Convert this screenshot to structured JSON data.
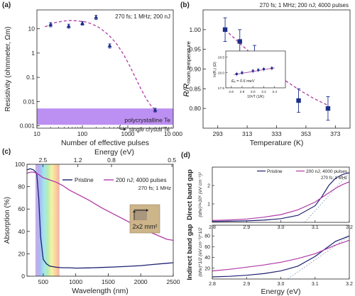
{
  "chart_data": [
    {
      "panel": "(a)",
      "type": "scatter",
      "xscale": "log",
      "yscale": "log",
      "xlim": [
        10,
        10000
      ],
      "ylim": [
        0.0008,
        60
      ],
      "xlabel": "Number of effective pulses",
      "ylabel": "Resistivity (ohmmeter, Ωm)",
      "xticks": [
        10,
        100,
        1000,
        10000
      ],
      "xtick_labels": [
        "10",
        "100",
        "1000",
        "10 000"
      ],
      "yticks": [
        0.001,
        0.01,
        0.1,
        1,
        10
      ],
      "ytick_labels": [
        "0.001",
        "0.01",
        "0.1",
        "1",
        "10"
      ],
      "annotation": "270 fs; 1 MHz; 200 nJ",
      "band": {
        "range": [
          0.0011,
          0.0052
        ],
        "label": "polycrystalline Te",
        "color": "#b07cf0"
      },
      "line_label": {
        "value": 0.00072,
        "label": "single crystal Te"
      },
      "series": [
        {
          "x": [
            20,
            50,
            100,
            200,
            400,
            4000
          ],
          "y": [
            15,
            13,
            17,
            30,
            2,
            0.0045
          ],
          "err": [
            3,
            2.5,
            3,
            6,
            0.4,
            0.0008
          ],
          "color": "#1c2f8a"
        }
      ],
      "fit": {
        "x": [
          15,
          25,
          40,
          60,
          80,
          120,
          160,
          220,
          300,
          400,
          550,
          800,
          1100,
          1500,
          2000,
          2600,
          3200,
          4000
        ],
        "y": [
          12,
          18,
          21,
          22,
          21,
          19,
          16,
          12,
          8,
          5,
          2.6,
          0.9,
          0.3,
          0.09,
          0.03,
          0.012,
          0.007,
          0.0045
        ],
        "color": "#b03aa8"
      }
    },
    {
      "panel": "(b)",
      "type": "scatter",
      "xlim": [
        283,
        383
      ],
      "ylim": [
        0.75,
        1.05
      ],
      "xlabel": "Temperature (K)",
      "ylabel": "R/R",
      "ylabel_sub": "room temperature",
      "xticks": [
        293,
        313,
        333,
        353,
        373
      ],
      "yticks": [
        0.8,
        0.85,
        0.9,
        0.95,
        1.0
      ],
      "ytick_labels": [
        "0.80",
        "0.85",
        "0.90",
        "0.95",
        "1.00"
      ],
      "annotation": "270 fs; 1 MHz; 200 nJ; 4000 pulses",
      "series": [
        {
          "x": [
            298,
            308,
            318,
            328,
            348,
            368
          ],
          "y": [
            1.0,
            0.97,
            0.93,
            0.9,
            0.82,
            0.8
          ],
          "err": [
            0.03,
            0.03,
            0.03,
            0.03,
            0.03,
            0.03
          ],
          "color": "#1c2f8a"
        }
      ],
      "fit": {
        "x": [
          298,
          308,
          318,
          328,
          338,
          348,
          358,
          368
        ],
        "y": [
          1.0,
          0.965,
          0.932,
          0.9,
          0.873,
          0.848,
          0.826,
          0.808
        ],
        "color": "#b03aa8"
      },
      "inset": {
        "xlim": [
          2.5,
          3.6
        ],
        "ylim": [
          17.5,
          18.7
        ],
        "xlabel": "10³/T (1/K)",
        "ylabel": "ln(R₀) (Ω)",
        "xticks": [
          2.6,
          2.8,
          3.0,
          3.2,
          3.4
        ],
        "xtick_labels": [
          "2.6",
          "2.8",
          "3.0",
          "3.2",
          "3.4"
        ],
        "yticks": [
          17.5,
          18.0,
          18.5
        ],
        "ytick_labels": [
          "17.5",
          "18.0",
          "18.5"
        ],
        "annotation": "Eₐ = 0.6 meV",
        "x": [
          2.7,
          2.8,
          3.0,
          3.1,
          3.2,
          3.35
        ],
        "y": [
          17.95,
          17.99,
          18.05,
          18.08,
          18.11,
          18.14
        ],
        "fit_x": [
          2.65,
          3.4
        ],
        "fit_y": [
          17.93,
          18.15
        ]
      }
    },
    {
      "panel": "(c)",
      "type": "line",
      "xlim": [
        250,
        2500
      ],
      "ylim": [
        0,
        100
      ],
      "xlabel": "Wavelength (nm)",
      "ylabel": "Absorption (%)",
      "top_xlabel": "Energy (eV)",
      "xticks": [
        500,
        1000,
        1500,
        2000,
        2500
      ],
      "yticks": [
        0,
        20,
        40,
        60,
        80,
        100
      ],
      "top_ticks": [
        2.5,
        1.2,
        0.8,
        0.5
      ],
      "top_tick_labels": [
        "2.5",
        "1.2",
        "0.8",
        "0.5"
      ],
      "annotation": "270 fs; 1 MHz",
      "inset_label": "2x2 mm²",
      "series": [
        {
          "name": "Pristine",
          "color": "#1c2070",
          "x": [
            250,
            300,
            350,
            400,
            430,
            460,
            500,
            550,
            600,
            700,
            800,
            900,
            1000,
            1200,
            1400,
            1600,
            1800,
            2000,
            2200,
            2400,
            2500
          ],
          "y": [
            95,
            96,
            95,
            92,
            70,
            35,
            15,
            11,
            9,
            8,
            7.5,
            7.5,
            7.2,
            7.4,
            7.8,
            8.2,
            8.8,
            9.4,
            10.5,
            11.5,
            12
          ]
        },
        {
          "name": "200 nJ; 4000 pulses",
          "color": "#b03aa8",
          "x": [
            250,
            300,
            350,
            400,
            450,
            500,
            550,
            600,
            700,
            800,
            900,
            1000,
            1200,
            1400,
            1600,
            1800,
            2000,
            2200,
            2400,
            2500
          ],
          "y": [
            92,
            93,
            93,
            92,
            90,
            88,
            87,
            86,
            84,
            81,
            77,
            74,
            68,
            61,
            55,
            49,
            43,
            38,
            33,
            32
          ]
        }
      ]
    },
    {
      "panel": "(d)",
      "type": "line",
      "xlim": [
        2.8,
        3.2
      ],
      "xlabel": "Energy (eV)",
      "xticks": [
        2.8,
        2.9,
        3.0,
        3.1,
        3.2
      ],
      "xtick_labels": [
        "2.8",
        "2.9",
        "3.0",
        "3.1",
        "3.2"
      ],
      "annotation": "270 fs; 1 MHz",
      "subplots": [
        {
          "side_label": "Direct band gap",
          "ylabel": "(αhν)²×10⁶ (eV cm⁻¹)²",
          "ylim": [
            0,
            3
          ],
          "yticks": [
            1,
            2
          ],
          "series": [
            {
              "name": "Pristine",
              "color": "#1c2070",
              "x": [
                2.8,
                2.85,
                2.9,
                2.95,
                3.0,
                3.05,
                3.1,
                3.12,
                3.14,
                3.16,
                3.18,
                3.2
              ],
              "y": [
                0.05,
                0.06,
                0.08,
                0.12,
                0.2,
                0.38,
                0.9,
                1.4,
                2.0,
                2.4,
                2.6,
                2.7
              ]
            },
            {
              "name": "200 nJ; 4000 pulses",
              "color": "#b03aa8",
              "x": [
                2.8,
                2.85,
                2.9,
                2.95,
                3.0,
                3.05,
                3.1,
                3.12,
                3.14,
                3.16,
                3.18,
                3.2
              ],
              "y": [
                0.1,
                0.13,
                0.18,
                0.28,
                0.42,
                0.68,
                1.1,
                1.35,
                1.6,
                1.85,
                2.05,
                2.2
              ]
            }
          ],
          "fit": {
            "x": [
              3.07,
              3.2
            ],
            "y": [
              0,
              2.7
            ]
          }
        },
        {
          "side_label": "Indirect band gap",
          "ylabel": "(αhν)^1/2 (eV cm⁻¹)^1/2",
          "ylim": [
            0,
            100
          ],
          "yticks": [
            20,
            40,
            60,
            80
          ],
          "series": [
            {
              "name": "Pristine",
              "color": "#1c2070",
              "x": [
                2.8,
                2.85,
                2.9,
                2.95,
                3.0,
                3.05,
                3.1,
                3.13,
                3.16,
                3.2
              ],
              "y": [
                4,
                5,
                7,
                10,
                15,
                24,
                42,
                56,
                70,
                80
              ]
            },
            {
              "name": "200 nJ; 4000 pulses",
              "color": "#b03aa8",
              "x": [
                2.8,
                2.85,
                2.9,
                2.95,
                3.0,
                3.05,
                3.1,
                3.13,
                3.16,
                3.2
              ],
              "y": [
                15,
                18,
                22,
                26,
                31,
                38,
                47,
                55,
                63,
                72
              ]
            }
          ],
          "fit": {
            "x": [
              3.02,
              3.2
            ],
            "y": [
              0,
              80
            ]
          }
        }
      ]
    }
  ]
}
